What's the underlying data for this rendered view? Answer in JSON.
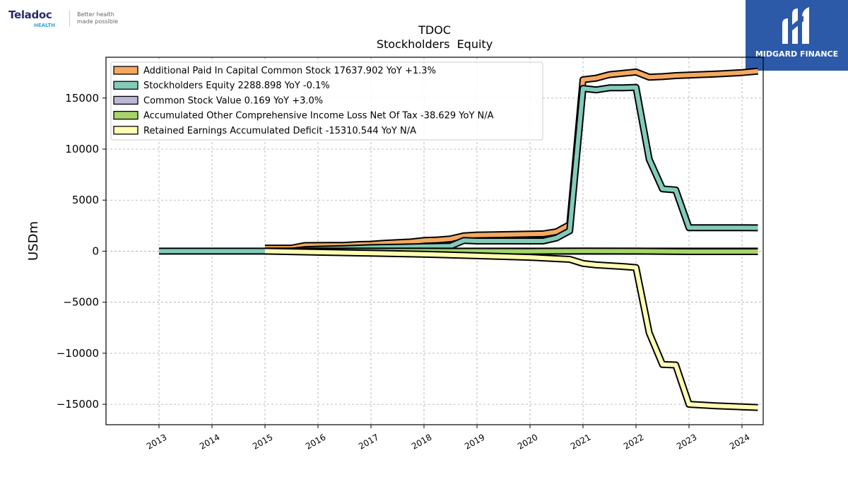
{
  "branding": {
    "left_logo": {
      "name": "Teladoc",
      "sub": "HEALTH",
      "tagline_1": "Better health",
      "tagline_2": "made possible"
    },
    "right_logo": {
      "name": "MIDGARD FINANCE"
    }
  },
  "colors": {
    "apic": "#f5a860",
    "se": "#82cbb9",
    "csv": "#bcb6d8",
    "aoci": "#a6d46a",
    "re": "#ffffb3",
    "grid": "#aaaaaa",
    "brand_blue": "#2c5aa8"
  },
  "chart_data": {
    "type": "line",
    "title": "TDOC",
    "subtitle": "Stockholders  Equity",
    "ylabel": "USDm",
    "xlabel": "",
    "ylim": [
      -17000,
      19000
    ],
    "xlim": [
      2012.0,
      2024.4
    ],
    "yticks": [
      15000,
      10000,
      5000,
      0,
      -5000,
      -10000,
      -15000
    ],
    "ytick_labels": [
      "15000",
      "10000",
      "5000",
      "0",
      "−5000",
      "−10000",
      "−15000"
    ],
    "xticks": [
      2013,
      2014,
      2015,
      2016,
      2017,
      2018,
      2019,
      2020,
      2021,
      2022,
      2023,
      2024
    ],
    "xtick_labels": [
      "2013",
      "2014",
      "2015",
      "2016",
      "2017",
      "2018",
      "2019",
      "2020",
      "2021",
      "2022",
      "2023",
      "2024"
    ],
    "grid": true,
    "legend_position": "top-left",
    "series": [
      {
        "name": "Additional Paid In Capital Common Stock",
        "legend": "Additional Paid In Capital Common Stock  17637.902 YoY +1.3%",
        "color_key": "apic",
        "x": [
          2015.0,
          2015.5,
          2015.75,
          2016.0,
          2016.5,
          2016.75,
          2017.0,
          2017.25,
          2017.75,
          2018.0,
          2018.25,
          2018.5,
          2018.75,
          2019.0,
          2019.5,
          2020.0,
          2020.25,
          2020.5,
          2020.75,
          2021.0,
          2021.25,
          2021.5,
          2022.0,
          2022.25,
          2022.5,
          2022.75,
          2023.0,
          2023.5,
          2024.0,
          2024.3
        ],
        "y": [
          300,
          300,
          550,
          560,
          580,
          650,
          680,
          780,
          900,
          1050,
          1100,
          1200,
          1500,
          1580,
          1620,
          1680,
          1700,
          1900,
          2600,
          16800,
          16950,
          17300,
          17550,
          17050,
          17100,
          17200,
          17250,
          17350,
          17500,
          17637.902
        ]
      },
      {
        "name": "Stockholders Equity",
        "legend": "Stockholders Equity  2288.898 YoY -0.1%",
        "color_key": "se",
        "x": [
          2013.0,
          2014.0,
          2015.0,
          2015.5,
          2015.75,
          2016.0,
          2016.5,
          2016.75,
          2017.0,
          2017.5,
          2018.0,
          2018.5,
          2018.75,
          2019.0,
          2019.5,
          2020.0,
          2020.25,
          2020.5,
          2020.75,
          2021.0,
          2021.25,
          2021.5,
          2021.75,
          2022.0,
          2022.25,
          2022.5,
          2022.75,
          2023.0,
          2023.5,
          2024.0,
          2024.3
        ],
        "y": [
          0,
          0,
          0,
          0,
          150,
          200,
          250,
          300,
          350,
          400,
          450,
          500,
          1050,
          1000,
          1000,
          1000,
          1000,
          1300,
          2000,
          15950,
          15800,
          16000,
          16000,
          16050,
          9000,
          6100,
          6000,
          2300,
          2300,
          2300,
          2288.898
        ]
      },
      {
        "name": "Common Stock Value",
        "legend": "Common Stock Value  0.169 YoY +3.0%",
        "color_key": "csv",
        "x": [
          2015.0,
          2024.3
        ],
        "y": [
          0.1,
          0.169
        ]
      },
      {
        "name": "Accumulated Other Comprehensive Income Loss Net Of Tax",
        "legend": "Accumulated Other Comprehensive Income Loss Net Of Tax  -38.629 YoY N/A",
        "color_key": "aoci",
        "x": [
          2015.0,
          2016.0,
          2017.0,
          2018.0,
          2019.0,
          2020.0,
          2021.0,
          2022.0,
          2023.0,
          2024.3
        ],
        "y": [
          0,
          0,
          0,
          0,
          -5,
          -10,
          10,
          0,
          -40,
          -38.629
        ]
      },
      {
        "name": "Retained Earnings Accumulated Deficit",
        "legend": "Retained Earnings Accumulated Deficit  -15310.544 YoY N/A",
        "color_key": "re",
        "x": [
          2015.0,
          2016.0,
          2017.0,
          2018.0,
          2019.0,
          2020.0,
          2020.75,
          2021.0,
          2021.25,
          2021.75,
          2022.0,
          2022.25,
          2022.5,
          2022.75,
          2023.0,
          2023.5,
          2024.0,
          2024.3
        ],
        "y": [
          0,
          -100,
          -200,
          -300,
          -450,
          -600,
          -800,
          -1200,
          -1350,
          -1500,
          -1600,
          -8000,
          -11100,
          -11150,
          -15000,
          -15150,
          -15250,
          -15310.544
        ]
      }
    ]
  }
}
